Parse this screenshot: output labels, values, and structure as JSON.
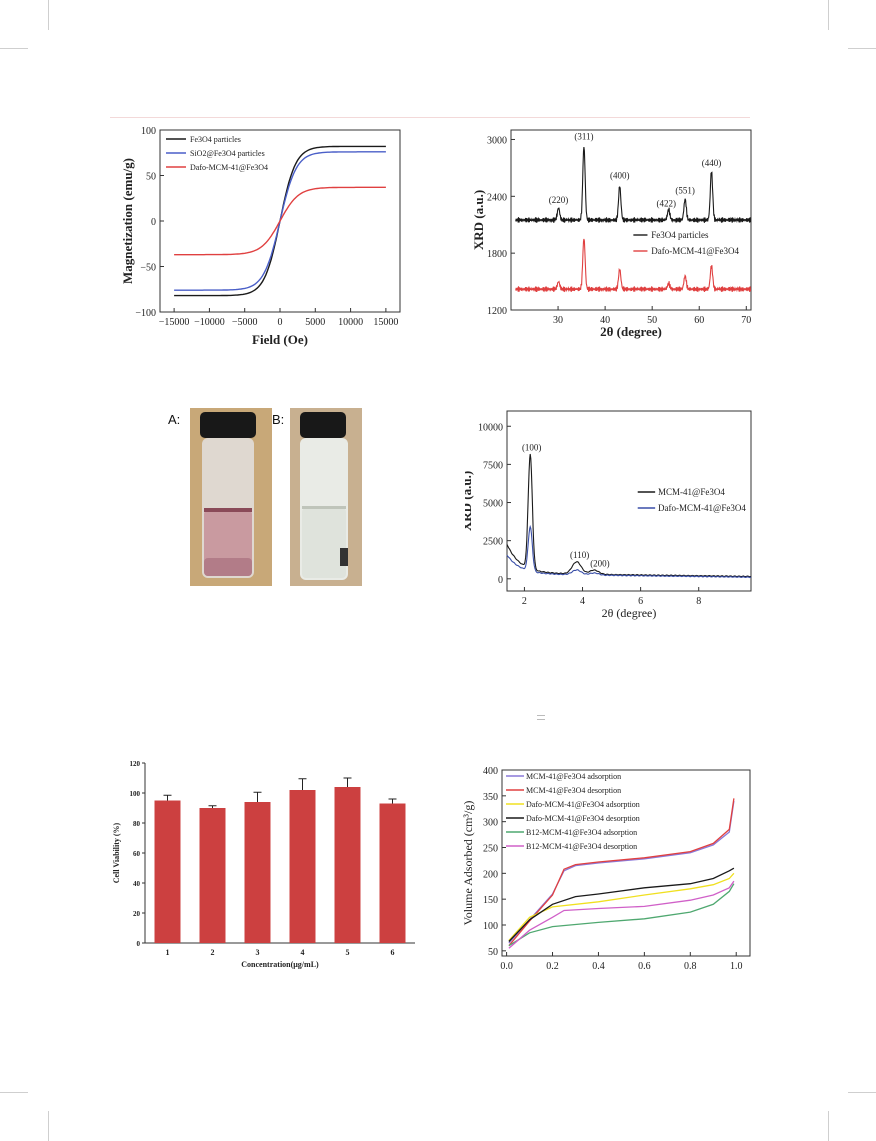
{
  "colors": {
    "black": "#1a1a1a",
    "blue": "#4a5fc8",
    "red": "#e04040",
    "bar": "#cc4040",
    "yellow": "#f0e020",
    "green": "#4fa870",
    "pink": "#d060c8",
    "navy": "#3a4fa8",
    "purple": "#8a78d8"
  },
  "chart_data": [
    {
      "id": "magnetization",
      "type": "line",
      "xlabel": "Field (Oe)",
      "ylabel": "Magnetization (emu/g)",
      "xlim": [
        -17000,
        17000
      ],
      "ylim": [
        -100,
        100
      ],
      "xticks": [
        "−15000",
        "−10000",
        "−5000",
        "0",
        "5000",
        "10000",
        "15000"
      ],
      "yticks": [
        "100",
        "50",
        "0",
        "−50",
        "−100"
      ],
      "legend_position": "top-left",
      "series": [
        {
          "name": "Fe3O4 particles",
          "ms": 82,
          "color": "black"
        },
        {
          "name": "SiO2@Fe3O4 particles",
          "ms": 76,
          "color": "blue"
        },
        {
          "name": "Dafo-MCM-41@Fe3O4",
          "ms": 37,
          "color": "red"
        }
      ]
    },
    {
      "id": "xrd-wide",
      "type": "line",
      "xlabel": "2θ (degree)",
      "ylabel": "XRD (a.u.)",
      "xlim": [
        20,
        71
      ],
      "ylim": [
        1200,
        3100
      ],
      "xticks": [
        "30",
        "40",
        "50",
        "60",
        "70"
      ],
      "yticks": [
        "3000",
        "2400",
        "1800",
        "1200"
      ],
      "peak_labels": [
        "(220)",
        "(311)",
        "(400)",
        "(422)",
        "(551)",
        "(440)"
      ],
      "legend_position": "right",
      "series": [
        {
          "name": "Fe3O4 particles",
          "baseline": 2150,
          "color": "black",
          "peaks": [
            [
              30.1,
              130
            ],
            [
              35.5,
              780
            ],
            [
              43.1,
              360
            ],
            [
              53.5,
              110
            ],
            [
              57.0,
              220
            ],
            [
              62.6,
              520
            ]
          ]
        },
        {
          "name": "Dafo-MCM-41@Fe3O4",
          "baseline": 1420,
          "color": "red",
          "peaks": [
            [
              30.1,
              80
            ],
            [
              35.5,
              540
            ],
            [
              43.1,
              210
            ],
            [
              53.5,
              60
            ],
            [
              57.0,
              140
            ],
            [
              62.6,
              250
            ]
          ]
        }
      ]
    },
    {
      "id": "xrd-small",
      "type": "line",
      "xlabel": "2θ (degree)",
      "ylabel": "XRD (a.u.)",
      "xlim": [
        1.4,
        9.8
      ],
      "ylim": [
        -800,
        11000
      ],
      "xticks": [
        "2",
        "4",
        "6",
        "8"
      ],
      "yticks": [
        "10000",
        "7500",
        "5000",
        "2500",
        "0"
      ],
      "peak_labels": [
        "(100)",
        "(110)",
        "(200)"
      ],
      "legend_position": "right",
      "series": [
        {
          "name": "MCM-41@Fe3O4",
          "color": "black",
          "peaks": [
            [
              2.2,
              7500
            ],
            [
              3.8,
              800
            ],
            [
              4.4,
              280
            ]
          ]
        },
        {
          "name": "Dafo-MCM-41@Fe3O4",
          "color": "navy",
          "peaks": [
            [
              2.2,
              2900
            ],
            [
              3.8,
              320
            ],
            [
              4.4,
              140
            ]
          ]
        }
      ]
    },
    {
      "id": "cell-viability",
      "type": "bar",
      "xlabel": "Concentration(μg/mL)",
      "ylabel": "Cell Viability (%)",
      "categories": [
        "1",
        "2",
        "3",
        "4",
        "5",
        "6"
      ],
      "values": [
        95,
        90,
        94,
        102,
        104,
        93
      ],
      "errors": [
        3.5,
        1.5,
        6.5,
        7.5,
        6,
        3
      ],
      "ylim": [
        0,
        120
      ],
      "yticks": [
        "120",
        "100",
        "80",
        "60",
        "40",
        "20",
        "0"
      ]
    },
    {
      "id": "isotherm",
      "type": "line",
      "xlabel": "",
      "ylabel": "Volume Adsorbed (cm³/g)",
      "xlim": [
        -0.02,
        1.06
      ],
      "ylim": [
        40,
        400
      ],
      "xticks": [
        "0.0",
        "0.2",
        "0.4",
        "0.6",
        "0.8",
        "1.0"
      ],
      "yticks": [
        "400",
        "350",
        "300",
        "250",
        "200",
        "150",
        "100",
        "50"
      ],
      "legend_position": "top-left",
      "series": [
        {
          "name": "MCM-41@Fe3O4 adsorption",
          "color": "purple",
          "points": [
            [
              0.01,
              65
            ],
            [
              0.1,
              110
            ],
            [
              0.2,
              160
            ],
            [
              0.25,
              205
            ],
            [
              0.3,
              215
            ],
            [
              0.4,
              220
            ],
            [
              0.6,
              228
            ],
            [
              0.8,
              240
            ],
            [
              0.9,
              255
            ],
            [
              0.97,
              280
            ],
            [
              0.99,
              340
            ]
          ]
        },
        {
          "name": "MCM-41@Fe3O4 desorption",
          "color": "red",
          "points": [
            [
              0.01,
              60
            ],
            [
              0.1,
              108
            ],
            [
              0.2,
              158
            ],
            [
              0.25,
              208
            ],
            [
              0.3,
              217
            ],
            [
              0.4,
              222
            ],
            [
              0.6,
              230
            ],
            [
              0.8,
              242
            ],
            [
              0.9,
              258
            ],
            [
              0.97,
              285
            ],
            [
              0.99,
              345
            ]
          ]
        },
        {
          "name": "Dafo-MCM-41@Fe3O4 adsorption",
          "color": "yellow",
          "points": [
            [
              0.01,
              70
            ],
            [
              0.1,
              115
            ],
            [
              0.2,
              135
            ],
            [
              0.4,
              145
            ],
            [
              0.6,
              158
            ],
            [
              0.8,
              170
            ],
            [
              0.9,
              178
            ],
            [
              0.97,
              190
            ],
            [
              0.99,
              200
            ]
          ]
        },
        {
          "name": "Dafo-MCM-41@Fe3O4 desorption",
          "color": "black",
          "points": [
            [
              0.01,
              68
            ],
            [
              0.1,
              110
            ],
            [
              0.2,
              140
            ],
            [
              0.3,
              155
            ],
            [
              0.4,
              160
            ],
            [
              0.6,
              172
            ],
            [
              0.8,
              180
            ],
            [
              0.9,
              190
            ],
            [
              0.97,
              205
            ],
            [
              0.99,
              210
            ]
          ]
        },
        {
          "name": "B12-MCM-41@Fe3O4 adsorption",
          "color": "green",
          "points": [
            [
              0.01,
              60
            ],
            [
              0.1,
              85
            ],
            [
              0.2,
              97
            ],
            [
              0.4,
              105
            ],
            [
              0.6,
              112
            ],
            [
              0.8,
              125
            ],
            [
              0.9,
              140
            ],
            [
              0.97,
              165
            ],
            [
              0.99,
              180
            ]
          ]
        },
        {
          "name": "B12-MCM-41@Fe3O4 desorption",
          "color": "pink",
          "points": [
            [
              0.01,
              55
            ],
            [
              0.1,
              90
            ],
            [
              0.2,
              115
            ],
            [
              0.25,
              128
            ],
            [
              0.4,
              132
            ],
            [
              0.6,
              136
            ],
            [
              0.8,
              148
            ],
            [
              0.9,
              158
            ],
            [
              0.97,
              172
            ],
            [
              0.99,
              185
            ]
          ]
        }
      ]
    }
  ],
  "photos": {
    "a_label": "A:",
    "b_label": "B:"
  }
}
